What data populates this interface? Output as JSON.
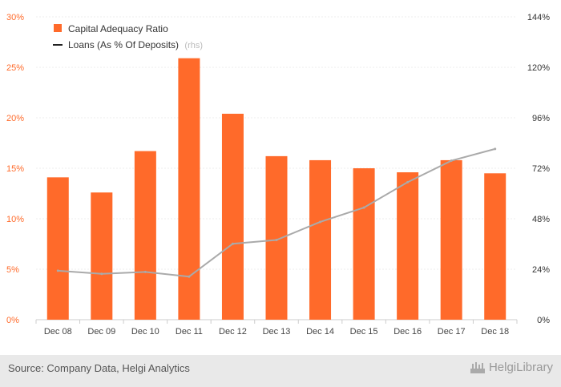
{
  "chart_data": {
    "type": "bar",
    "categories": [
      "Dec 08",
      "Dec 09",
      "Dec 10",
      "Dec 11",
      "Dec 12",
      "Dec 13",
      "Dec 14",
      "Dec 15",
      "Dec 16",
      "Dec 17",
      "Dec 18"
    ],
    "series": [
      {
        "name": "Capital Adequacy Ratio",
        "type": "bar",
        "axis": "left",
        "unit": "%",
        "values": [
          14.1,
          12.6,
          16.7,
          25.9,
          20.4,
          16.2,
          15.8,
          15.0,
          14.6,
          15.8,
          14.5
        ]
      },
      {
        "name": "Loans (As % Of Deposits)",
        "type": "line",
        "axis": "right",
        "unit": "%",
        "values": [
          23.3,
          21.8,
          22.7,
          20.5,
          36.1,
          37.9,
          46.5,
          53.3,
          65.4,
          75.6,
          81.2
        ]
      }
    ],
    "legend_suffix": "(rhs)",
    "left_axis": {
      "ylim": [
        0,
        30
      ],
      "ticks": [
        "0%",
        "5%",
        "10%",
        "15%",
        "20%",
        "25%",
        "30%"
      ]
    },
    "right_axis": {
      "ylim": [
        0,
        144
      ],
      "ticks": [
        "0%",
        "24%",
        "48%",
        "72%",
        "96%",
        "120%",
        "144%"
      ]
    },
    "legend_position": "top-left"
  },
  "colors": {
    "bar": "#ff6a2a",
    "line": "#aaaaaa",
    "legend_line": "#222222",
    "left_ticks": "#ff6b2b"
  },
  "footer": {
    "source": "Source: Company Data, Helgi Analytics",
    "brand": "HelgiLibrary",
    "brand_icon": "helgi-library-logo-icon"
  }
}
